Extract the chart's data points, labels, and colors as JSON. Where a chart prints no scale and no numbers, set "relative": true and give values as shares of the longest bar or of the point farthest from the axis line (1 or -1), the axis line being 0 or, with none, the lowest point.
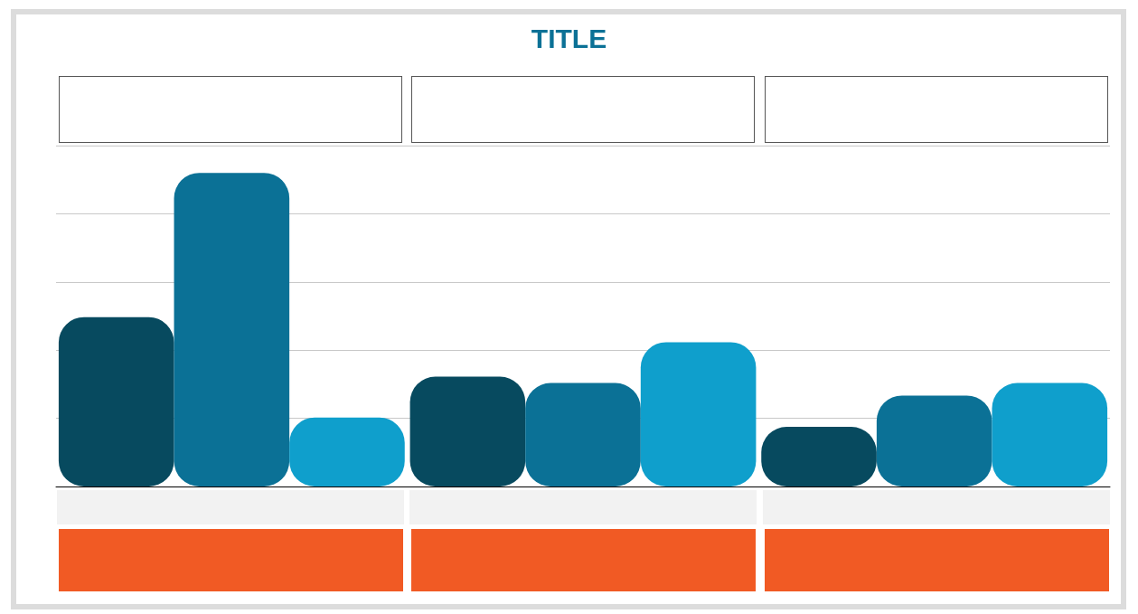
{
  "chart_data": {
    "type": "bar",
    "title": "TITLE",
    "relative": true,
    "grid": "y",
    "categories": [
      null,
      null,
      null
    ],
    "series": [
      {
        "color": "#074a5f",
        "values": [
          0.54,
          0.35,
          0.19
        ]
      },
      {
        "color": "#0b7196",
        "values": [
          1,
          0.33,
          0.29
        ]
      },
      {
        "color": "#0f9fcc",
        "values": [
          0.22,
          0.46,
          0.33
        ]
      }
    ]
  }
}
